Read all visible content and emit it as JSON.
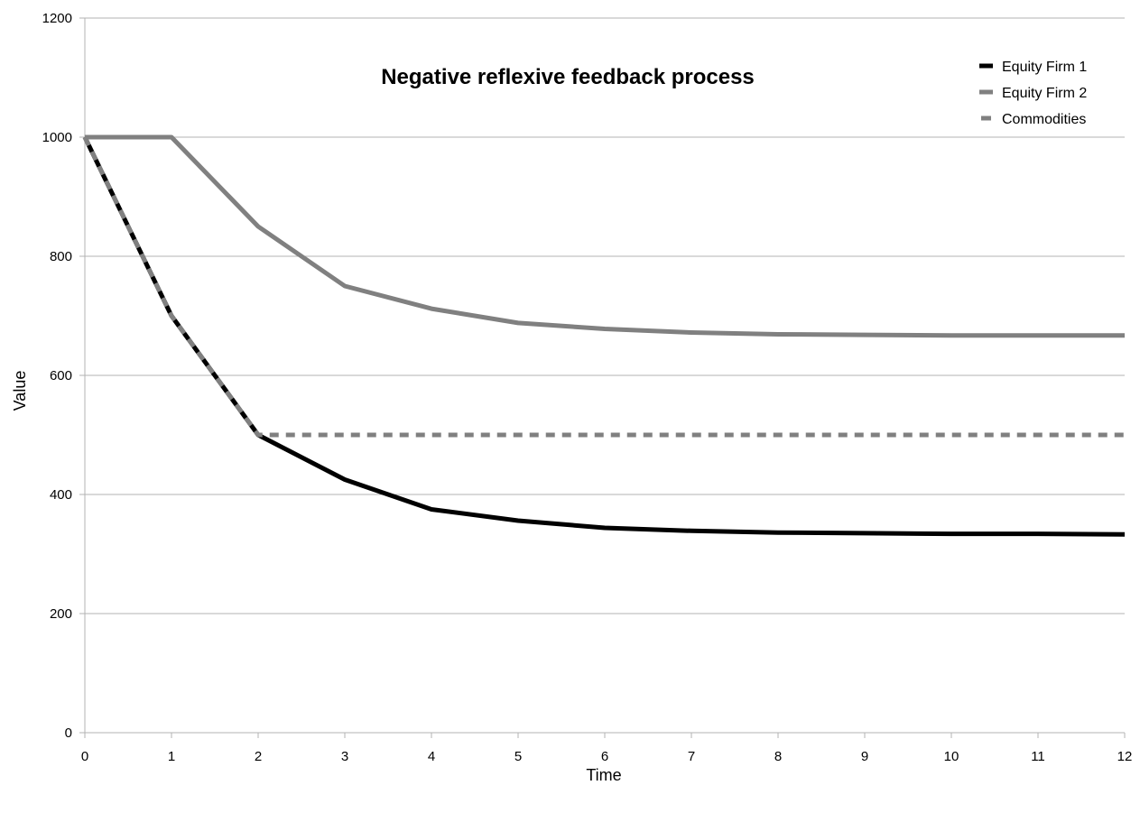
{
  "chart_data": {
    "type": "line",
    "title": "Negative reflexive feedback process",
    "xlabel": "Time",
    "ylabel": "Value",
    "xlim": [
      0,
      12
    ],
    "ylim": [
      0,
      1200
    ],
    "x_ticks": [
      0,
      1,
      2,
      3,
      4,
      5,
      6,
      7,
      8,
      9,
      10,
      11,
      12
    ],
    "y_ticks": [
      0,
      200,
      400,
      600,
      800,
      1000,
      1200
    ],
    "grid": "horizontal",
    "legend_position": "top-right",
    "series": [
      {
        "name": "Equity Firm 1",
        "color": "#000000",
        "style": "solid",
        "x": [
          0,
          1,
          2,
          3,
          4,
          5,
          6,
          7,
          8,
          9,
          10,
          11,
          12
        ],
        "values": [
          1000,
          700,
          500,
          425,
          375,
          356,
          344,
          339,
          336,
          335,
          334,
          334,
          333
        ]
      },
      {
        "name": "Equity Firm 2",
        "color": "#808080",
        "style": "solid",
        "x": [
          0,
          1,
          2,
          3,
          4,
          5,
          6,
          7,
          8,
          9,
          10,
          11,
          12
        ],
        "values": [
          1000,
          1000,
          850,
          750,
          712,
          688,
          678,
          672,
          669,
          668,
          667,
          667,
          667
        ]
      },
      {
        "name": "Commodities",
        "color": "#808080",
        "style": "dashed",
        "x": [
          0,
          1,
          2,
          3,
          4,
          5,
          6,
          7,
          8,
          9,
          10,
          11,
          12
        ],
        "values": [
          1000,
          700,
          500,
          500,
          500,
          500,
          500,
          500,
          500,
          500,
          500,
          500,
          500
        ]
      }
    ]
  }
}
